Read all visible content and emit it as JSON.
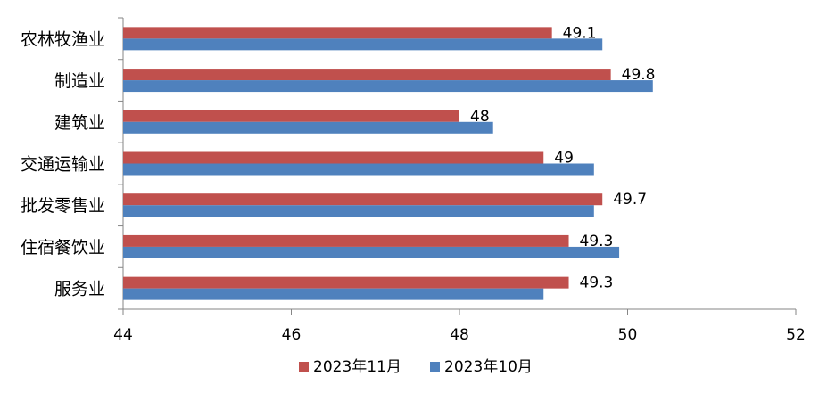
{
  "chart_data": {
    "type": "bar",
    "orientation": "horizontal",
    "categories": [
      "农林牧渔业",
      "制造业",
      "建筑业",
      "交通运输业",
      "批发零售业",
      "住宿餐饮业",
      "服务业"
    ],
    "series": [
      {
        "name": "2023年11月",
        "color": "#C0504D",
        "values": [
          49.1,
          49.8,
          48.0,
          49.0,
          49.7,
          49.3,
          49.3
        ],
        "labels": [
          "49.1",
          "49.8",
          "48",
          "49",
          "49.7",
          "49.3",
          "49.3"
        ]
      },
      {
        "name": "2023年10月",
        "color": "#4F81BD",
        "values": [
          49.7,
          50.3,
          48.4,
          49.6,
          49.6,
          49.9,
          49.0
        ]
      }
    ],
    "xlim": [
      44,
      52
    ],
    "xticks": [
      "44",
      "46",
      "48",
      "50",
      "52"
    ],
    "grid": false,
    "legend_position": "bottom"
  }
}
